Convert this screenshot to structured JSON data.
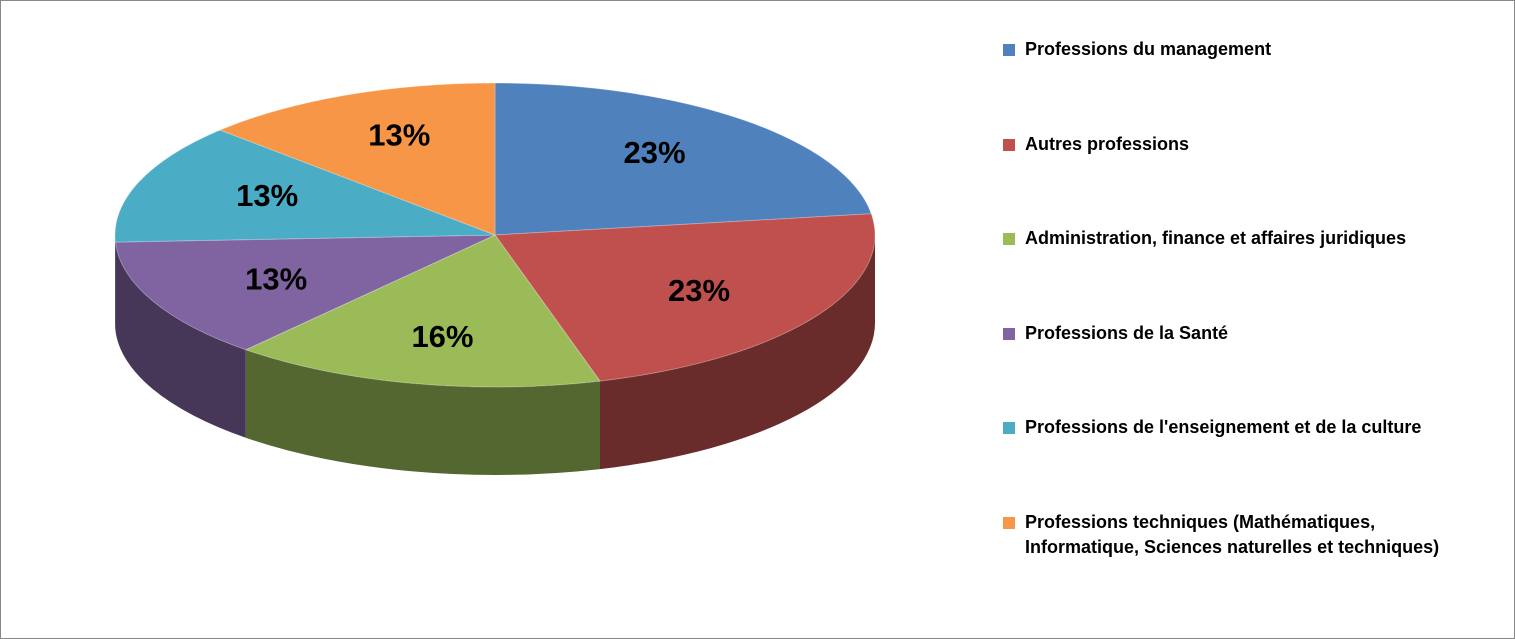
{
  "chart_data": {
    "type": "pie3d",
    "categories": [
      "Professions du management",
      "Autres professions",
      "Administration, finance et affaires juridiques",
      "Professions de la Santé",
      "Professions de l'enseignement et de la culture",
      "Professions techniques (Mathématiques, Informatique, Sciences naturelles et techniques)"
    ],
    "values": [
      23,
      23,
      16,
      13,
      13,
      13
    ],
    "value_labels": [
      "23%",
      "23%",
      "16%",
      "13%",
      "13%",
      "13%"
    ],
    "colors": [
      "#4f81bd",
      "#c0504d",
      "#9bbb59",
      "#8064a2",
      "#4bacc6",
      "#f79646"
    ],
    "legend": "right"
  }
}
